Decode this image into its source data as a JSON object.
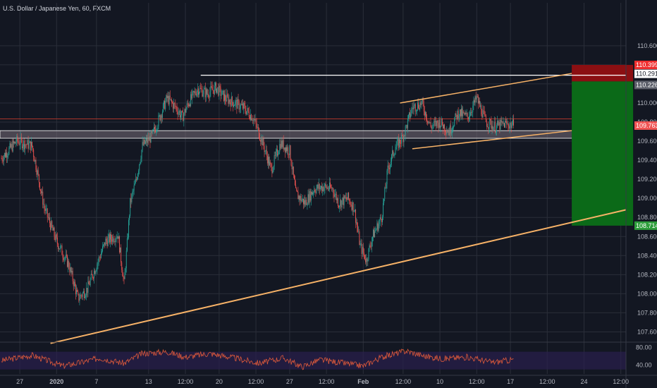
{
  "header": {
    "title": "U.S. Dollar / Japanese Yen, 60, FXCM"
  },
  "colors": {
    "background": "#131722",
    "grid": "#2a2e39",
    "axis_text": "#b2b5be",
    "candle_up": "#26a69a",
    "candle_down": "#ef5350",
    "trendline": "#f7b267",
    "horizontal_line": "#ffffff",
    "zone_fill": "#786e78",
    "stop_zone": "#8b0f12",
    "target_zone": "#0b6a18",
    "stop_badge": "#ef2f2f",
    "current_badge": "#f05454",
    "target_badge": "#2e9e3c",
    "entry_badge": "#5d606b",
    "rsi_line": "#e05a3a",
    "rsi_band": "#2a1f4d"
  },
  "chart_data": {
    "type": "candlestick",
    "title": "U.S. Dollar / Japanese Yen, 60, FXCM",
    "price_axis": {
      "ylim": [
        107.5,
        111.05
      ],
      "ticks": [
        "110.600",
        "110.400",
        "110.200",
        "110.000",
        "109.800",
        "109.600",
        "109.400",
        "109.200",
        "109.000",
        "108.800",
        "108.600",
        "108.400",
        "108.200",
        "108.000",
        "107.800",
        "107.600"
      ],
      "tick_values": [
        110.6,
        110.4,
        110.2,
        110.0,
        109.8,
        109.6,
        109.4,
        109.2,
        109.0,
        108.8,
        108.6,
        108.4,
        108.2,
        108.0,
        107.8,
        107.6
      ]
    },
    "time_axis": {
      "ticks": [
        "27",
        "2020",
        "7",
        "13",
        "12:00",
        "20",
        "12:00",
        "27",
        "12:00",
        "Feb",
        "12:00",
        "10",
        "12:00",
        "17",
        "12:00",
        "24",
        "12:00"
      ],
      "tick_bar_index": [
        6,
        18,
        31,
        48,
        60,
        71,
        83,
        94,
        106,
        118,
        131,
        143,
        155,
        166,
        178,
        190,
        202
      ]
    },
    "price_path": [
      [
        0,
        109.42
      ],
      [
        5,
        109.6
      ],
      [
        10,
        109.55
      ],
      [
        14,
        108.9
      ],
      [
        18,
        108.55
      ],
      [
        22,
        108.3
      ],
      [
        25,
        107.95
      ],
      [
        28,
        108.05
      ],
      [
        31,
        108.3
      ],
      [
        34,
        108.55
      ],
      [
        38,
        108.62
      ],
      [
        40,
        108.1
      ],
      [
        42,
        108.95
      ],
      [
        44,
        109.2
      ],
      [
        46,
        109.55
      ],
      [
        49,
        109.65
      ],
      [
        51,
        109.8
      ],
      [
        54,
        110.05
      ],
      [
        57,
        109.95
      ],
      [
        59,
        109.85
      ],
      [
        61,
        110.0
      ],
      [
        64,
        110.15
      ],
      [
        67,
        110.1
      ],
      [
        70,
        110.16
      ],
      [
        73,
        110.05
      ],
      [
        76,
        110.0
      ],
      [
        79,
        109.95
      ],
      [
        82,
        109.85
      ],
      [
        85,
        109.6
      ],
      [
        88,
        109.3
      ],
      [
        91,
        109.58
      ],
      [
        94,
        109.5
      ],
      [
        96,
        109.05
      ],
      [
        99,
        108.95
      ],
      [
        102,
        109.1
      ],
      [
        105,
        109.12
      ],
      [
        108,
        109.1
      ],
      [
        110,
        108.95
      ],
      [
        113,
        109.0
      ],
      [
        115,
        108.9
      ],
      [
        117,
        108.5
      ],
      [
        119,
        108.35
      ],
      [
        121,
        108.6
      ],
      [
        124,
        108.8
      ],
      [
        126,
        109.3
      ],
      [
        128,
        109.5
      ],
      [
        131,
        109.65
      ],
      [
        134,
        109.95
      ],
      [
        137,
        110.0
      ],
      [
        140,
        109.75
      ],
      [
        143,
        109.8
      ],
      [
        146,
        109.7
      ],
      [
        149,
        109.9
      ],
      [
        152,
        109.85
      ],
      [
        155,
        110.05
      ],
      [
        158,
        109.8
      ],
      [
        161,
        109.75
      ],
      [
        164,
        109.78
      ],
      [
        167,
        109.77
      ]
    ],
    "last_price": 109.763,
    "annotations": {
      "horizontal_resistance": {
        "price": 110.291,
        "from_bar": 65,
        "to_bar": 212
      },
      "support_zone": {
        "from": 109.63,
        "to": 109.71
      },
      "red_line": 109.76,
      "channel_upper": {
        "start": [
          130,
          110.0
        ],
        "end": [
          186,
          110.31
        ]
      },
      "channel_lower": {
        "start": [
          134,
          109.52
        ],
        "end": [
          186,
          109.71
        ]
      },
      "long_trendline": {
        "start": [
          16,
          107.48
        ],
        "end": [
          212,
          108.88
        ]
      },
      "position_long": {
        "from_bar": 186,
        "to_bar": 206,
        "stop": 110.399,
        "entry": 110.226,
        "target": 108.714
      }
    },
    "price_labels": [
      {
        "value": 110.399,
        "text": "110.399",
        "kind": "stop"
      },
      {
        "value": 110.291,
        "text": "110.291",
        "kind": "line"
      },
      {
        "value": 110.226,
        "text": "110.226",
        "kind": "entry"
      },
      {
        "value": 109.763,
        "text": "109.763",
        "kind": "current"
      },
      {
        "value": 108.714,
        "text": "108.714",
        "kind": "target"
      }
    ],
    "rsi": {
      "ylim": [
        20,
        90
      ],
      "ticks": [
        "80.00",
        "40.00"
      ],
      "tick_values": [
        80,
        40
      ],
      "band": [
        30,
        70
      ],
      "path": [
        [
          0,
          50
        ],
        [
          10,
          62
        ],
        [
          20,
          38
        ],
        [
          26,
          46
        ],
        [
          32,
          56
        ],
        [
          40,
          44
        ],
        [
          46,
          66
        ],
        [
          54,
          70
        ],
        [
          60,
          58
        ],
        [
          68,
          66
        ],
        [
          76,
          56
        ],
        [
          84,
          44
        ],
        [
          92,
          56
        ],
        [
          98,
          36
        ],
        [
          104,
          52
        ],
        [
          110,
          46
        ],
        [
          118,
          38
        ],
        [
          124,
          58
        ],
        [
          132,
          72
        ],
        [
          138,
          60
        ],
        [
          144,
          54
        ],
        [
          152,
          58
        ],
        [
          160,
          46
        ],
        [
          167,
          52
        ]
      ]
    }
  }
}
